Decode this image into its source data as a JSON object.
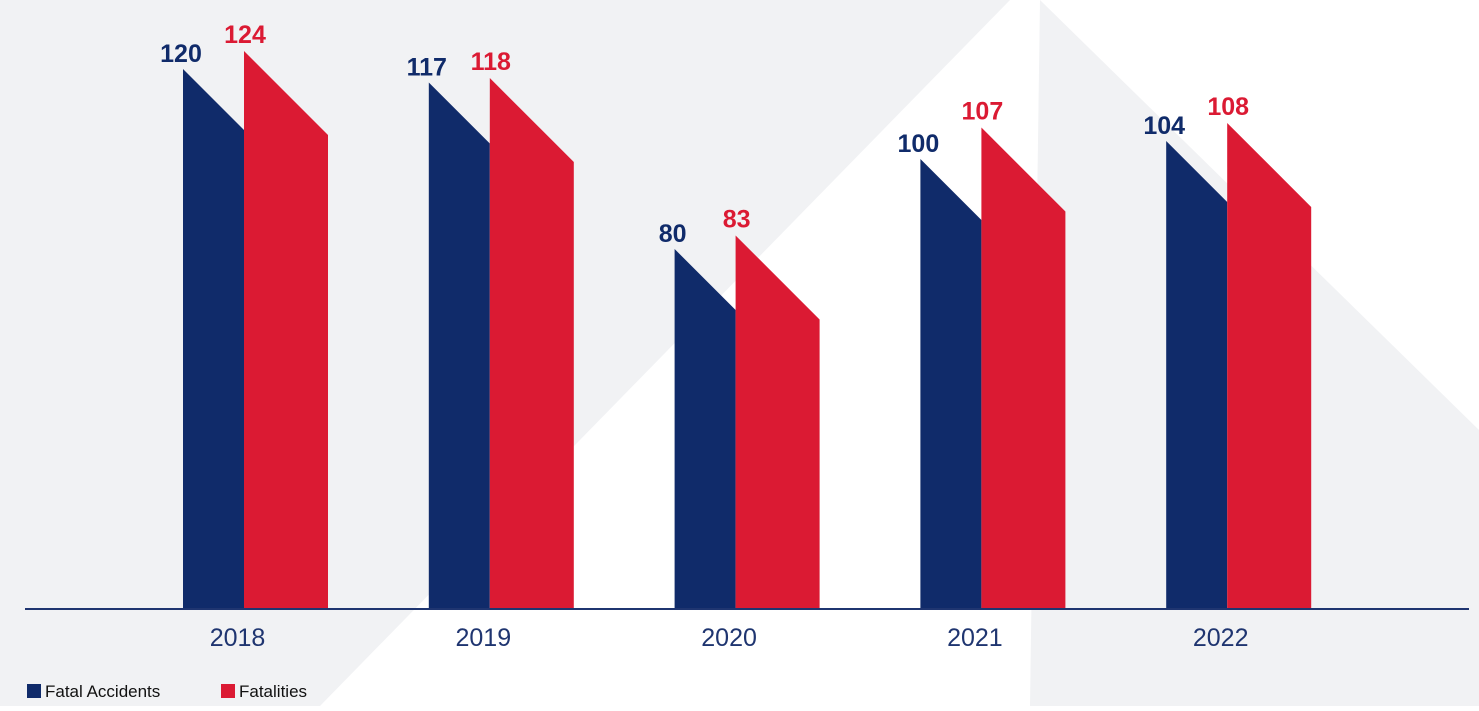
{
  "chart_data": {
    "type": "bar",
    "categories": [
      "2018",
      "2019",
      "2020",
      "2021",
      "2022"
    ],
    "series": [
      {
        "name": "Fatal Accidents",
        "values": [
          120,
          117,
          80,
          100,
          104
        ],
        "color": "#102b6a"
      },
      {
        "name": "Fatalities",
        "values": [
          124,
          118,
          83,
          107,
          108
        ],
        "color": "#db1a33"
      }
    ],
    "title": "",
    "xlabel": "",
    "ylabel": "",
    "ylim": [
      0,
      130
    ],
    "grid": false,
    "legend_position": "bottom-left",
    "colors": {
      "axis": "#1f3570",
      "category_label": "#1f3570",
      "background_shape": "#f1f2f4"
    }
  }
}
